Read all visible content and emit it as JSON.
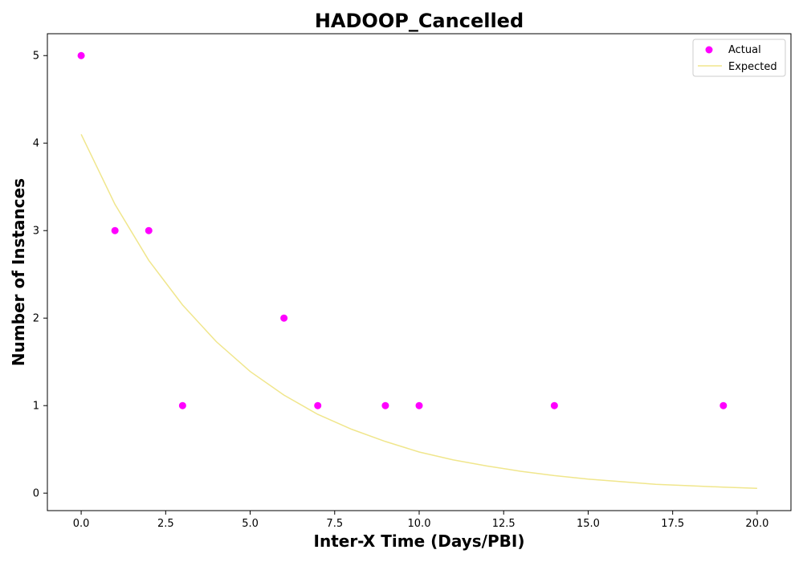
{
  "chart_data": {
    "type": "scatter",
    "title": "HADOOP_Cancelled",
    "xlabel": "Inter-X Time (Days/PBI)",
    "ylabel": "Number of Instances",
    "xlim": [
      -1.0,
      21.0
    ],
    "ylim": [
      -0.2,
      5.25
    ],
    "x_ticks": [
      0.0,
      2.5,
      5.0,
      7.5,
      10.0,
      12.5,
      15.0,
      17.5,
      20.0
    ],
    "x_tick_labels": [
      "0.0",
      "2.5",
      "5.0",
      "7.5",
      "10.0",
      "12.5",
      "15.0",
      "17.5",
      "20.0"
    ],
    "y_ticks": [
      0,
      1,
      2,
      3,
      4,
      5
    ],
    "y_tick_labels": [
      "0",
      "1",
      "2",
      "3",
      "4",
      "5"
    ],
    "grid": false,
    "legend_position": "top-right",
    "series": [
      {
        "name": "Actual",
        "kind": "scatter",
        "color": "#ff00ff",
        "x": [
          0,
          1,
          2,
          3,
          6,
          7,
          9,
          10,
          14,
          19
        ],
        "y": [
          5,
          3,
          3,
          1,
          2,
          1,
          1,
          1,
          1,
          1
        ]
      },
      {
        "name": "Expected",
        "kind": "line",
        "color": "#f0e68c",
        "x": [
          0,
          1,
          2,
          3,
          4,
          5,
          6,
          7,
          8,
          9,
          10,
          11,
          12,
          13,
          14,
          15,
          16,
          17,
          18,
          19,
          20
        ],
        "y": [
          4.1,
          3.3,
          2.66,
          2.15,
          1.73,
          1.39,
          1.12,
          0.9,
          0.73,
          0.59,
          0.47,
          0.38,
          0.31,
          0.25,
          0.2,
          0.16,
          0.13,
          0.1,
          0.085,
          0.068,
          0.055
        ]
      }
    ]
  }
}
